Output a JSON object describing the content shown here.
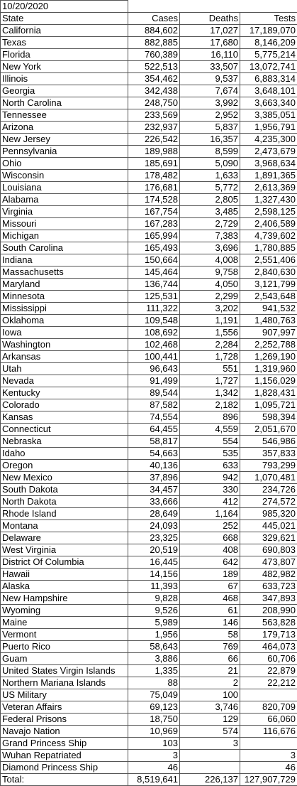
{
  "date": "10/20/2020",
  "columns": [
    "State",
    "Cases",
    "Deaths",
    "Tests"
  ],
  "rows": [
    [
      "California",
      "884,602",
      "17,027",
      "17,189,070"
    ],
    [
      "Texas",
      "882,885",
      "17,680",
      "8,146,209"
    ],
    [
      "Florida",
      "760,389",
      "16,110",
      "5,775,214"
    ],
    [
      "New York",
      "522,513",
      "33,507",
      "13,072,741"
    ],
    [
      "Illinois",
      "354,462",
      "9,537",
      "6,883,314"
    ],
    [
      "Georgia",
      "342,438",
      "7,674",
      "3,648,101"
    ],
    [
      "North Carolina",
      "248,750",
      "3,992",
      "3,663,340"
    ],
    [
      "Tennessee",
      "233,569",
      "2,952",
      "3,385,051"
    ],
    [
      "Arizona",
      "232,937",
      "5,837",
      "1,956,791"
    ],
    [
      "New Jersey",
      "226,542",
      "16,357",
      "4,235,300"
    ],
    [
      "Pennsylvania",
      "189,988",
      "8,599",
      "2,473,679"
    ],
    [
      "Ohio",
      "185,691",
      "5,090",
      "3,968,634"
    ],
    [
      "Wisconsin",
      "178,482",
      "1,633",
      "1,891,365"
    ],
    [
      "Louisiana",
      "176,681",
      "5,772",
      "2,613,369"
    ],
    [
      "Alabama",
      "174,528",
      "2,805",
      "1,327,430"
    ],
    [
      "Virginia",
      "167,754",
      "3,485",
      "2,598,125"
    ],
    [
      "Missouri",
      "167,283",
      "2,729",
      "2,406,589"
    ],
    [
      "Michigan",
      "165,994",
      "7,383",
      "4,739,602"
    ],
    [
      "South Carolina",
      "165,493",
      "3,696",
      "1,780,885"
    ],
    [
      "Indiana",
      "150,664",
      "4,008",
      "2,551,406"
    ],
    [
      "Massachusetts",
      "145,464",
      "9,758",
      "2,840,630"
    ],
    [
      "Maryland",
      "136,744",
      "4,050",
      "3,121,799"
    ],
    [
      "Minnesota",
      "125,531",
      "2,299",
      "2,543,648"
    ],
    [
      "Mississippi",
      "111,322",
      "3,202",
      "941,532"
    ],
    [
      "Oklahoma",
      "109,548",
      "1,191",
      "1,480,763"
    ],
    [
      "Iowa",
      "108,692",
      "1,556",
      "907,997"
    ],
    [
      "Washington",
      "102,468",
      "2,284",
      "2,252,788"
    ],
    [
      "Arkansas",
      "100,441",
      "1,728",
      "1,269,190"
    ],
    [
      "Utah",
      "96,643",
      "551",
      "1,319,960"
    ],
    [
      "Nevada",
      "91,499",
      "1,727",
      "1,156,029"
    ],
    [
      "Kentucky",
      "89,544",
      "1,342",
      "1,828,431"
    ],
    [
      "Colorado",
      "87,582",
      "2,182",
      "1,095,721"
    ],
    [
      "Kansas",
      "74,554",
      "896",
      "598,394"
    ],
    [
      "Connecticut",
      "64,455",
      "4,559",
      "2,051,670"
    ],
    [
      "Nebraska",
      "58,817",
      "554",
      "546,986"
    ],
    [
      "Idaho",
      "54,663",
      "535",
      "357,833"
    ],
    [
      "Oregon",
      "40,136",
      "633",
      "793,299"
    ],
    [
      "New Mexico",
      "37,896",
      "942",
      "1,070,481"
    ],
    [
      "South Dakota",
      "34,457",
      "330",
      "234,726"
    ],
    [
      "North Dakota",
      "33,666",
      "412",
      "274,572"
    ],
    [
      "Rhode Island",
      "28,649",
      "1,164",
      "985,320"
    ],
    [
      "Montana",
      "24,093",
      "252",
      "445,021"
    ],
    [
      "Delaware",
      "23,325",
      "668",
      "329,621"
    ],
    [
      "West Virginia",
      "20,519",
      "408",
      "690,803"
    ],
    [
      "District Of Columbia",
      "16,445",
      "642",
      "473,807"
    ],
    [
      "Hawaii",
      "14,156",
      "189",
      "482,982"
    ],
    [
      "Alaska",
      "11,393",
      "67",
      "633,723"
    ],
    [
      "New Hampshire",
      "9,828",
      "468",
      "347,893"
    ],
    [
      "Wyoming",
      "9,526",
      "61",
      "208,990"
    ],
    [
      "Maine",
      "5,989",
      "146",
      "563,828"
    ],
    [
      "Vermont",
      "1,956",
      "58",
      "179,713"
    ],
    [
      "Puerto Rico",
      "58,643",
      "769",
      "464,073"
    ],
    [
      "Guam",
      "3,886",
      "66",
      "60,706"
    ],
    [
      "United States Virgin Islands",
      "1,335",
      "21",
      "22,879"
    ],
    [
      "Northern Mariana Islands",
      "88",
      "2",
      "22,212"
    ],
    [
      "US Military",
      "75,049",
      "100",
      null
    ],
    [
      "Veteran Affairs",
      "69,123",
      "3,746",
      "820,709"
    ],
    [
      "Federal Prisons",
      "18,750",
      "129",
      "66,060"
    ],
    [
      "Navajo Nation",
      "10,969",
      "574",
      "116,676"
    ],
    [
      "Grand Princess Ship",
      "103",
      "3",
      null
    ],
    [
      "Wuhan Repatriated",
      "3",
      null,
      "3"
    ],
    [
      "Diamond Princess Ship",
      "46",
      null,
      "46"
    ]
  ],
  "total": [
    "Total:",
    "8,519,641",
    "226,137",
    "127,907,729"
  ]
}
